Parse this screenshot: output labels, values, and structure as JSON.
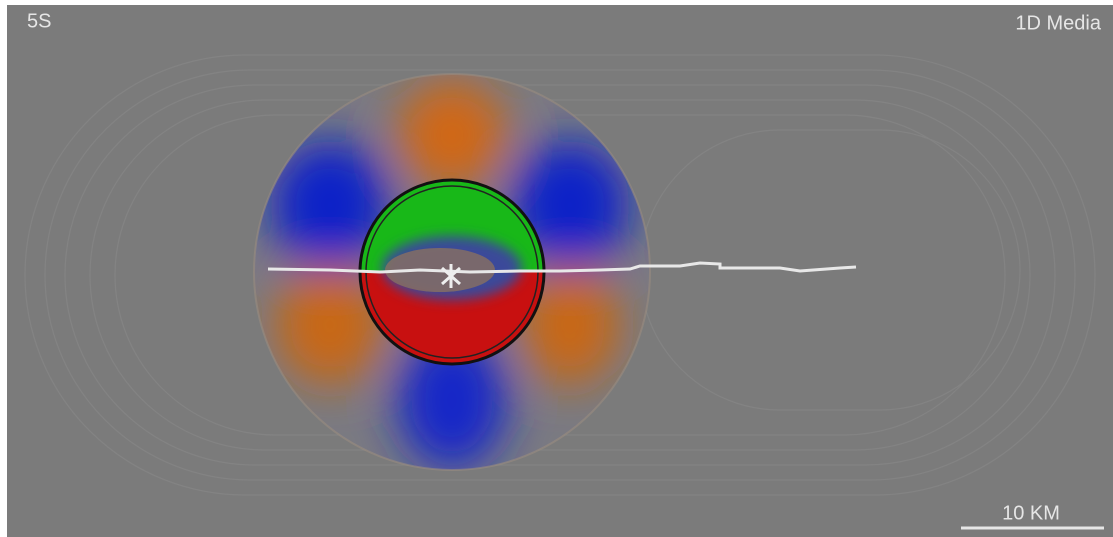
{
  "labels": {
    "time": "5S",
    "medium": "1D Media",
    "scale": "10 KM"
  }
}
